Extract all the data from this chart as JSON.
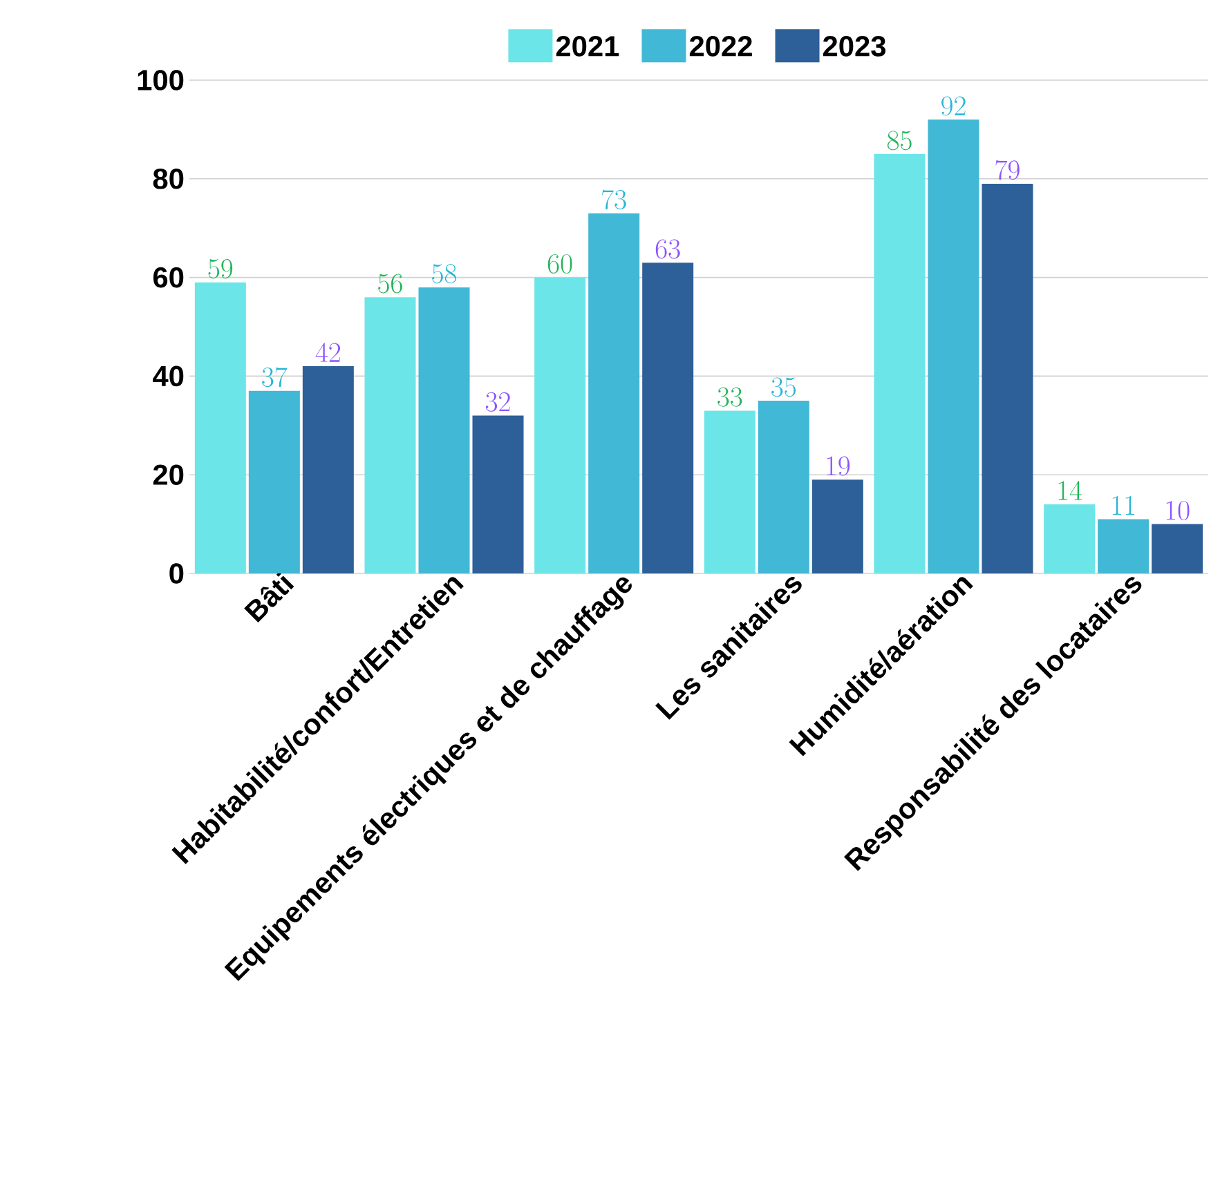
{
  "chart_data": {
    "type": "bar",
    "categories": [
      "Bâti",
      "Habitabilité/confort/Entretien",
      "Equipements électriques et de chauffage",
      "Les sanitaires",
      "Humidité/aération",
      "Responsabilité des locataires"
    ],
    "series": [
      {
        "name": "2021",
        "color": "#6ce5e8",
        "values": [
          59,
          56,
          60,
          33,
          85,
          14
        ]
      },
      {
        "name": "2022",
        "color": "#41b8d5",
        "values": [
          37,
          58,
          73,
          35,
          92,
          11
        ]
      },
      {
        "name": "2023",
        "color": "#2d5f98",
        "values": [
          42,
          32,
          63,
          19,
          79,
          10
        ]
      }
    ],
    "ylim": [
      0,
      100
    ],
    "yticks": [
      0,
      20,
      40,
      60,
      80,
      100
    ],
    "grid": "y",
    "legend": "top",
    "data_labels": true
  }
}
